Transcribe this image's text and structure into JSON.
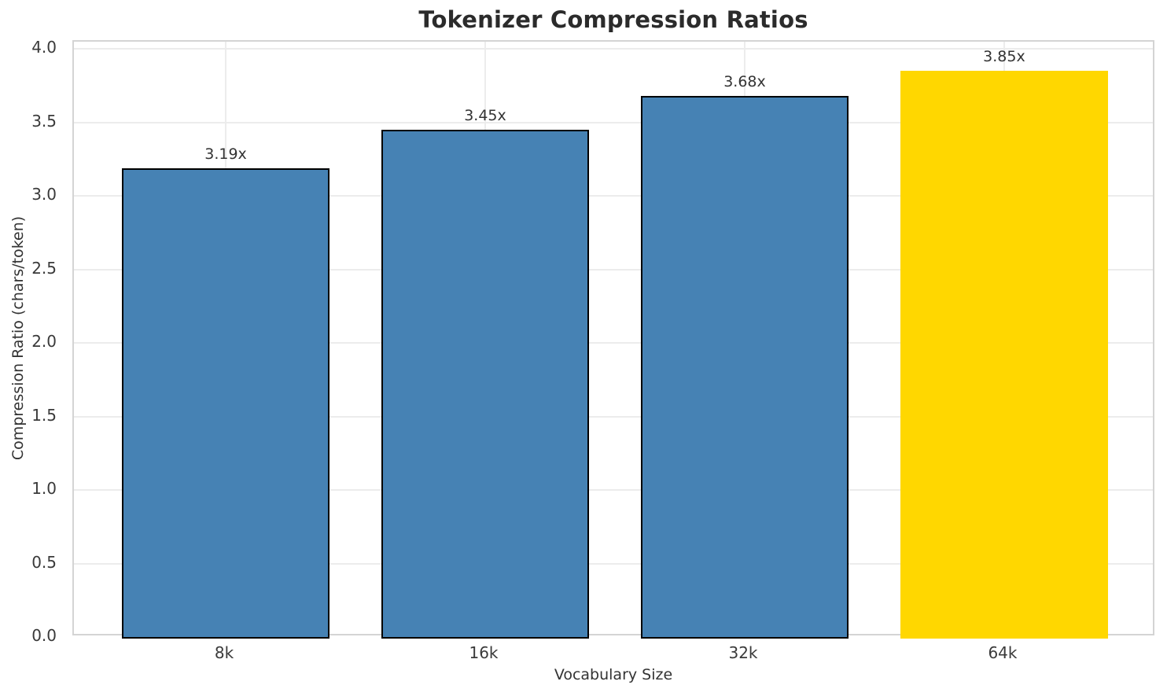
{
  "chart_data": {
    "type": "bar",
    "title": "Tokenizer Compression Ratios",
    "xlabel": "Vocabulary Size",
    "ylabel": "Compression Ratio (chars/token)",
    "categories": [
      "8k",
      "16k",
      "32k",
      "64k"
    ],
    "values": [
      3.19,
      3.45,
      3.68,
      3.85
    ],
    "bar_labels": [
      "3.19x",
      "3.45x",
      "3.68x",
      "3.85x"
    ],
    "yticks": [
      "0.0",
      "0.5",
      "1.0",
      "1.5",
      "2.0",
      "2.5",
      "3.0",
      "3.5",
      "4.0"
    ],
    "ylim": [
      0,
      4.05
    ],
    "xlim": [
      -0.585,
      3.585
    ],
    "bar_width": 0.8,
    "grid": true,
    "legend": "none",
    "highlight_index": 3,
    "bar_colors": [
      "#4682B4",
      "#4682B4",
      "#4682B4",
      "#FFD700"
    ],
    "bar_edge_colors": [
      "#000000",
      "#000000",
      "#000000",
      "#FFD700"
    ],
    "colors": {
      "grid": "#ececec",
      "spine": "#d4d4d4",
      "tick_text": "#3a3a3a",
      "title_text": "#2b2b2b",
      "background": "#ffffff"
    }
  }
}
